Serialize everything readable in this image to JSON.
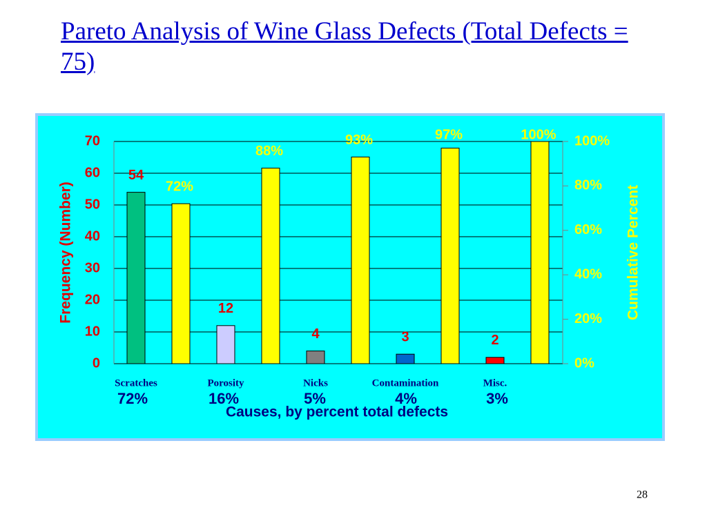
{
  "chart_data": {
    "type": "bar",
    "title": "Pareto Analysis of Wine Glass Defects (Total Defects = 75)",
    "ylabel": "Frequency (Number)",
    "y2label": "Cumulative Percent",
    "xlabel": "Causes, by percent total defects",
    "categories": [
      "Scratches",
      "Porosity",
      "Nicks",
      "Contamination",
      "Misc."
    ],
    "category_shares": [
      "72%",
      "16%",
      "5%",
      "4%",
      "3%"
    ],
    "series": [
      {
        "colors": [
          "#00c080",
          "#ccccff",
          "#808080",
          "#0066cc",
          "#ff0000"
        ],
        "values": [
          54,
          12,
          4,
          3,
          2
        ]
      },
      {
        "color": "#ffff00",
        "axis": "y2",
        "values": [
          72,
          88,
          93,
          97,
          100
        ],
        "value_labels": [
          "72%",
          "88%",
          "93%",
          "97%",
          "100%"
        ]
      }
    ],
    "ylim": [
      0,
      70
    ],
    "yticks": [
      0,
      10,
      20,
      30,
      40,
      50,
      60,
      70
    ],
    "y2lim": [
      0,
      100
    ],
    "y2ticks": [
      {
        "value": 0,
        "label": "0%"
      },
      {
        "value": 20,
        "label": "20%"
      },
      {
        "value": 40,
        "label": "40%"
      },
      {
        "value": 60,
        "label": "60%"
      },
      {
        "value": 80,
        "label": "80%"
      },
      {
        "value": 100,
        "label": "100%"
      }
    ],
    "grid": true,
    "page_number": "28"
  }
}
